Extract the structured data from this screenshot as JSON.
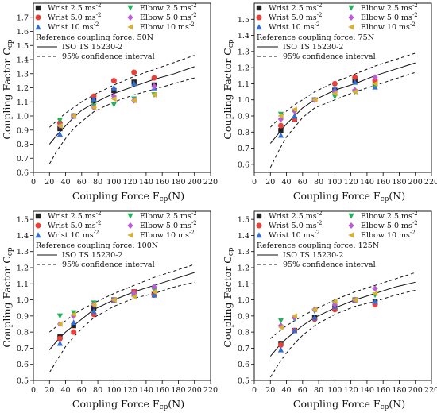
{
  "chart_data": [
    {
      "type": "scatter",
      "xlabel": "Coupling Force F",
      "xlabel_sub": "cp",
      "xlabel_unit": "(N)",
      "ylabel": "Coupling Factor C",
      "ylabel_sub": "cp",
      "xlim": [
        0,
        220
      ],
      "ylim": [
        0.6,
        1.8
      ],
      "xticks": [
        "0",
        "20",
        "40",
        "60",
        "80",
        "100",
        "120",
        "140",
        "160",
        "180",
        "200",
        "220"
      ],
      "yticks": [
        "0.6",
        "0.7",
        "0.8",
        "0.9",
        "1.0",
        "1.1",
        "1.2",
        "1.3",
        "1.4",
        "1.5",
        "1.6",
        "1.7"
      ],
      "legend_items": [
        {
          "label": "Wrist 2.5 ms",
          "sup": "-2"
        },
        {
          "label": "Wrist 5.0 ms",
          "sup": "-2"
        },
        {
          "label": "Wrist 10 ms",
          "sup": "-2"
        },
        {
          "label": "Elbow 2.5 ms",
          "sup": "-2"
        },
        {
          "label": "Elbow 5.0 ms",
          "sup": "-2"
        },
        {
          "label": "Elbow 10 ms",
          "sup": "-2"
        }
      ],
      "reference_text": "Reference coupling force: 50N",
      "curve_label": "ISO TS 15230-2",
      "ci_label": "95% confidence interval",
      "curve": {
        "x": [
          20,
          30,
          40,
          50,
          60,
          75,
          100,
          125,
          150,
          175,
          200
        ],
        "y": [
          0.8,
          0.87,
          0.93,
          0.99,
          1.04,
          1.09,
          1.16,
          1.21,
          1.26,
          1.3,
          1.35
        ]
      },
      "ci_upper": {
        "x": [
          20,
          30,
          40,
          50,
          60,
          75,
          100,
          125,
          150,
          175,
          200
        ],
        "y": [
          0.92,
          0.97,
          1.02,
          1.06,
          1.1,
          1.15,
          1.22,
          1.28,
          1.33,
          1.38,
          1.43
        ]
      },
      "ci_lower": {
        "x": [
          20,
          30,
          40,
          50,
          60,
          75,
          100,
          125,
          150,
          175,
          200
        ],
        "y": [
          0.66,
          0.76,
          0.84,
          0.91,
          0.96,
          1.03,
          1.1,
          1.15,
          1.19,
          1.23,
          1.27
        ]
      },
      "series": [
        {
          "name": "Wrist 2.5 ms-2",
          "marker": "square",
          "color": "#222222",
          "x": [
            33,
            50,
            75,
            100,
            125,
            150
          ],
          "y": [
            0.91,
            1.0,
            1.11,
            1.18,
            1.24,
            1.22
          ]
        },
        {
          "name": "Wrist 5.0 ms-2",
          "marker": "circle",
          "color": "#e8413a",
          "x": [
            33,
            50,
            75,
            100,
            125,
            150
          ],
          "y": [
            0.95,
            1.0,
            1.14,
            1.25,
            1.31,
            1.27
          ]
        },
        {
          "name": "Wrist 10 ms-2",
          "marker": "triangle-up",
          "color": "#2f6fd6",
          "x": [
            33,
            50,
            75,
            100,
            125,
            150
          ],
          "y": [
            0.87,
            1.0,
            1.12,
            1.2,
            1.23,
            1.2
          ]
        },
        {
          "name": "Elbow 2.5 ms-2",
          "marker": "triangle-down",
          "color": "#25b060",
          "x": [
            33,
            50,
            75,
            100,
            125,
            150
          ],
          "y": [
            0.97,
            1.0,
            1.07,
            1.08,
            1.12,
            1.15
          ]
        },
        {
          "name": "Elbow 5.0 ms-2",
          "marker": "diamond",
          "color": "#b95ed8",
          "x": [
            33,
            50,
            75,
            100,
            125,
            150
          ],
          "y": [
            0.93,
            1.0,
            1.06,
            1.14,
            1.11,
            1.21
          ]
        },
        {
          "name": "Elbow 10 ms-2",
          "marker": "triangle-left",
          "color": "#d9b12e",
          "x": [
            33,
            50,
            75,
            100,
            125,
            150
          ],
          "y": [
            0.93,
            1.0,
            1.06,
            1.12,
            1.11,
            1.15
          ]
        }
      ]
    },
    {
      "type": "scatter",
      "xlabel": "Coupling Force F",
      "xlabel_sub": "cp",
      "xlabel_unit": "(N)",
      "ylabel": "Coupling Factor C",
      "ylabel_sub": "cp",
      "xlim": [
        0,
        220
      ],
      "ylim": [
        0.55,
        1.6
      ],
      "xticks": [
        "0",
        "20",
        "40",
        "60",
        "80",
        "100",
        "120",
        "140",
        "160",
        "180",
        "200",
        "220"
      ],
      "yticks": [
        "0.6",
        "0.7",
        "0.8",
        "0.9",
        "1.0",
        "1.1",
        "1.2",
        "1.3",
        "1.4",
        "1.5"
      ],
      "legend_items": [
        {
          "label": "Wrist 2.5 ms",
          "sup": "-2"
        },
        {
          "label": "Wrist 5.0 ms",
          "sup": "-2"
        },
        {
          "label": "Wrist 10 ms",
          "sup": "-2"
        },
        {
          "label": "Elbow 2.5 ms",
          "sup": "-2"
        },
        {
          "label": "Elbow 5.0 ms",
          "sup": "-2"
        },
        {
          "label": "Elbow 10 ms",
          "sup": "-2"
        }
      ],
      "reference_text": "Reference coupling force: 75N",
      "curve_label": "ISO TS 15230-2",
      "ci_label": "95% confidence interval",
      "curve": {
        "x": [
          20,
          30,
          40,
          50,
          60,
          75,
          100,
          125,
          150,
          175,
          200
        ],
        "y": [
          0.73,
          0.79,
          0.85,
          0.9,
          0.95,
          1.0,
          1.06,
          1.1,
          1.15,
          1.19,
          1.23
        ]
      },
      "ci_upper": {
        "x": [
          20,
          30,
          40,
          50,
          60,
          75,
          100,
          125,
          150,
          175,
          200
        ],
        "y": [
          0.83,
          0.88,
          0.93,
          0.97,
          1.0,
          1.05,
          1.11,
          1.16,
          1.21,
          1.25,
          1.29
        ]
      },
      "ci_lower": {
        "x": [
          20,
          30,
          40,
          50,
          60,
          75,
          100,
          125,
          150,
          175,
          200
        ],
        "y": [
          0.58,
          0.68,
          0.77,
          0.83,
          0.89,
          0.95,
          1.0,
          1.05,
          1.09,
          1.13,
          1.17
        ]
      },
      "series": [
        {
          "name": "Wrist 2.5 ms-2",
          "marker": "square",
          "color": "#222222",
          "x": [
            33,
            50,
            75,
            100,
            125,
            150
          ],
          "y": [
            0.81,
            0.88,
            1.0,
            1.06,
            1.12,
            1.1
          ]
        },
        {
          "name": "Wrist 5.0 ms-2",
          "marker": "circle",
          "color": "#e8413a",
          "x": [
            33,
            50,
            75,
            100,
            125,
            150
          ],
          "y": [
            0.84,
            0.88,
            1.0,
            1.1,
            1.14,
            1.12
          ]
        },
        {
          "name": "Wrist 10 ms-2",
          "marker": "triangle-up",
          "color": "#2f6fd6",
          "x": [
            33,
            50,
            75,
            100,
            125,
            150
          ],
          "y": [
            0.78,
            0.9,
            1.0,
            1.07,
            1.11,
            1.08
          ]
        },
        {
          "name": "Elbow 2.5 ms-2",
          "marker": "triangle-down",
          "color": "#25b060",
          "x": [
            33,
            50,
            75,
            100,
            125,
            150
          ],
          "y": [
            0.91,
            0.93,
            1.0,
            1.02,
            1.05,
            1.09
          ]
        },
        {
          "name": "Elbow 5.0 ms-2",
          "marker": "diamond",
          "color": "#b95ed8",
          "x": [
            33,
            50,
            75,
            100,
            125,
            150
          ],
          "y": [
            0.88,
            0.93,
            1.0,
            1.05,
            1.06,
            1.14
          ]
        },
        {
          "name": "Elbow 10 ms-2",
          "marker": "triangle-left",
          "color": "#d9b12e",
          "x": [
            33,
            50,
            75,
            100,
            125,
            150
          ],
          "y": [
            0.9,
            0.94,
            1.0,
            1.04,
            1.05,
            1.1
          ]
        }
      ]
    },
    {
      "type": "scatter",
      "xlabel": "Coupling Force F",
      "xlabel_sub": "cp",
      "xlabel_unit": "(N)",
      "ylabel": "Coupling Factor C",
      "ylabel_sub": "cp",
      "xlim": [
        0,
        220
      ],
      "ylim": [
        0.5,
        1.55
      ],
      "xticks": [
        "0",
        "20",
        "40",
        "60",
        "80",
        "100",
        "120",
        "140",
        "160",
        "180",
        "200",
        "220"
      ],
      "yticks": [
        "0.5",
        "0.6",
        "0.7",
        "0.8",
        "0.9",
        "1.0",
        "1.1",
        "1.2",
        "1.3",
        "1.4",
        "1.5"
      ],
      "legend_items": [
        {
          "label": "Wrist 2.5 ms",
          "sup": "-2"
        },
        {
          "label": "Wrist 5.0 ms",
          "sup": "-2"
        },
        {
          "label": "Wrist 10 ms",
          "sup": "-2"
        },
        {
          "label": "Elbow 2.5 ms",
          "sup": "-2"
        },
        {
          "label": "Elbow 5.0 ms",
          "sup": "-2"
        },
        {
          "label": "Elbow 10 ms",
          "sup": "-2"
        }
      ],
      "reference_text": "Reference coupling force: 100N",
      "curve_label": "ISO TS 15230-2",
      "ci_label": "95% confidence interval",
      "curve": {
        "x": [
          20,
          30,
          40,
          50,
          60,
          75,
          100,
          125,
          150,
          175,
          200
        ],
        "y": [
          0.69,
          0.75,
          0.8,
          0.84,
          0.88,
          0.94,
          1.0,
          1.05,
          1.09,
          1.13,
          1.17
        ]
      },
      "ci_upper": {
        "x": [
          20,
          30,
          40,
          50,
          60,
          75,
          100,
          125,
          150,
          175,
          200
        ],
        "y": [
          0.8,
          0.84,
          0.87,
          0.91,
          0.94,
          0.98,
          1.04,
          1.09,
          1.14,
          1.18,
          1.22
        ]
      },
      "ci_lower": {
        "x": [
          20,
          30,
          40,
          50,
          60,
          75,
          100,
          125,
          150,
          175,
          200
        ],
        "y": [
          0.55,
          0.63,
          0.71,
          0.77,
          0.82,
          0.89,
          0.96,
          1.01,
          1.04,
          1.08,
          1.11
        ]
      },
      "series": [
        {
          "name": "Wrist 2.5 ms-2",
          "marker": "square",
          "color": "#222222",
          "x": [
            33,
            50,
            75,
            100,
            125,
            150
          ],
          "y": [
            0.77,
            0.84,
            0.95,
            1.0,
            1.05,
            1.04
          ]
        },
        {
          "name": "Wrist 5.0 ms-2",
          "marker": "circle",
          "color": "#e8413a",
          "x": [
            33,
            50,
            75,
            100,
            125,
            150
          ],
          "y": [
            0.76,
            0.8,
            0.91,
            1.0,
            1.05,
            1.03
          ]
        },
        {
          "name": "Wrist 10 ms-2",
          "marker": "triangle-up",
          "color": "#2f6fd6",
          "x": [
            33,
            50,
            75,
            100,
            125,
            150
          ],
          "y": [
            0.73,
            0.86,
            0.93,
            1.0,
            1.04,
            1.03
          ]
        },
        {
          "name": "Elbow 2.5 ms-2",
          "marker": "triangle-down",
          "color": "#25b060",
          "x": [
            33,
            50,
            75,
            100,
            125,
            150
          ],
          "y": [
            0.9,
            0.92,
            0.98,
            1.0,
            1.03,
            1.06
          ]
        },
        {
          "name": "Elbow 5.0 ms-2",
          "marker": "diamond",
          "color": "#b95ed8",
          "x": [
            33,
            50,
            75,
            100,
            125,
            150
          ],
          "y": [
            0.85,
            0.9,
            0.97,
            1.0,
            1.04,
            1.08
          ]
        },
        {
          "name": "Elbow 10 ms-2",
          "marker": "triangle-left",
          "color": "#d9b12e",
          "x": [
            33,
            50,
            75,
            100,
            125,
            150
          ],
          "y": [
            0.85,
            0.91,
            0.97,
            1.0,
            1.02,
            1.05
          ]
        }
      ]
    },
    {
      "type": "scatter",
      "xlabel": "Coupling Force F",
      "xlabel_sub": "cp",
      "xlabel_unit": "(N)",
      "ylabel": "Coupling Factor C",
      "ylabel_sub": "cp",
      "xlim": [
        0,
        220
      ],
      "ylim": [
        0.5,
        1.55
      ],
      "xticks": [
        "0",
        "20",
        "40",
        "60",
        "80",
        "100",
        "120",
        "140",
        "160",
        "180",
        "200",
        "220"
      ],
      "yticks": [
        "0.5",
        "0.6",
        "0.7",
        "0.8",
        "0.9",
        "1.0",
        "1.1",
        "1.2",
        "1.3",
        "1.4",
        "1.5"
      ],
      "legend_items": [
        {
          "label": "Wrist 2.5 ms",
          "sup": "-2"
        },
        {
          "label": "Wrist 5.0 ms",
          "sup": "-2"
        },
        {
          "label": "Wrist 10 ms",
          "sup": "-2"
        },
        {
          "label": "Elbow 2.5 ms",
          "sup": "-2"
        },
        {
          "label": "Elbow 5.0 ms",
          "sup": "-2"
        },
        {
          "label": "Elbow 10 ms",
          "sup": "-2"
        }
      ],
      "reference_text": "Reference coupling force: 125N",
      "curve_label": "ISO TS 15230-2",
      "ci_label": "95% confidence interval",
      "curve": {
        "x": [
          20,
          30,
          40,
          50,
          60,
          75,
          100,
          125,
          150,
          175,
          200
        ],
        "y": [
          0.65,
          0.71,
          0.76,
          0.8,
          0.84,
          0.89,
          0.95,
          1.0,
          1.04,
          1.08,
          1.11
        ]
      },
      "ci_upper": {
        "x": [
          20,
          30,
          40,
          50,
          60,
          75,
          100,
          125,
          150,
          175,
          200
        ],
        "y": [
          0.76,
          0.8,
          0.84,
          0.87,
          0.9,
          0.94,
          1.0,
          1.05,
          1.09,
          1.13,
          1.17
        ]
      },
      "ci_lower": {
        "x": [
          20,
          30,
          40,
          50,
          60,
          75,
          100,
          125,
          150,
          175,
          200
        ],
        "y": [
          0.52,
          0.6,
          0.67,
          0.73,
          0.78,
          0.84,
          0.91,
          0.96,
          0.99,
          1.03,
          1.06
        ]
      },
      "series": [
        {
          "name": "Wrist 2.5 ms-2",
          "marker": "square",
          "color": "#222222",
          "x": [
            33,
            50,
            75,
            100,
            125,
            150
          ],
          "y": [
            0.73,
            0.81,
            0.89,
            0.95,
            1.0,
            0.99
          ]
        },
        {
          "name": "Wrist 5.0 ms-2",
          "marker": "circle",
          "color": "#e8413a",
          "x": [
            33,
            50,
            75,
            100,
            125,
            150
          ],
          "y": [
            0.72,
            0.81,
            0.88,
            0.94,
            1.0,
            0.97
          ]
        },
        {
          "name": "Wrist 10 ms-2",
          "marker": "triangle-up",
          "color": "#2f6fd6",
          "x": [
            33,
            50,
            75,
            100,
            125,
            150
          ],
          "y": [
            0.69,
            0.81,
            0.89,
            0.96,
            1.0,
            0.99
          ]
        },
        {
          "name": "Elbow 2.5 ms-2",
          "marker": "triangle-down",
          "color": "#25b060",
          "x": [
            33,
            50,
            75,
            100,
            125,
            150
          ],
          "y": [
            0.87,
            0.88,
            0.93,
            0.97,
            1.0,
            1.03
          ]
        },
        {
          "name": "Elbow 5.0 ms-2",
          "marker": "diamond",
          "color": "#b95ed8",
          "x": [
            33,
            50,
            75,
            100,
            125,
            150
          ],
          "y": [
            0.84,
            0.89,
            0.94,
            0.97,
            1.0,
            1.07
          ]
        },
        {
          "name": "Elbow 10 ms-2",
          "marker": "triangle-left",
          "color": "#d9b12e",
          "x": [
            33,
            50,
            75,
            100,
            125,
            150
          ],
          "y": [
            0.83,
            0.9,
            0.94,
            0.99,
            1.0,
            1.04
          ]
        }
      ]
    }
  ]
}
